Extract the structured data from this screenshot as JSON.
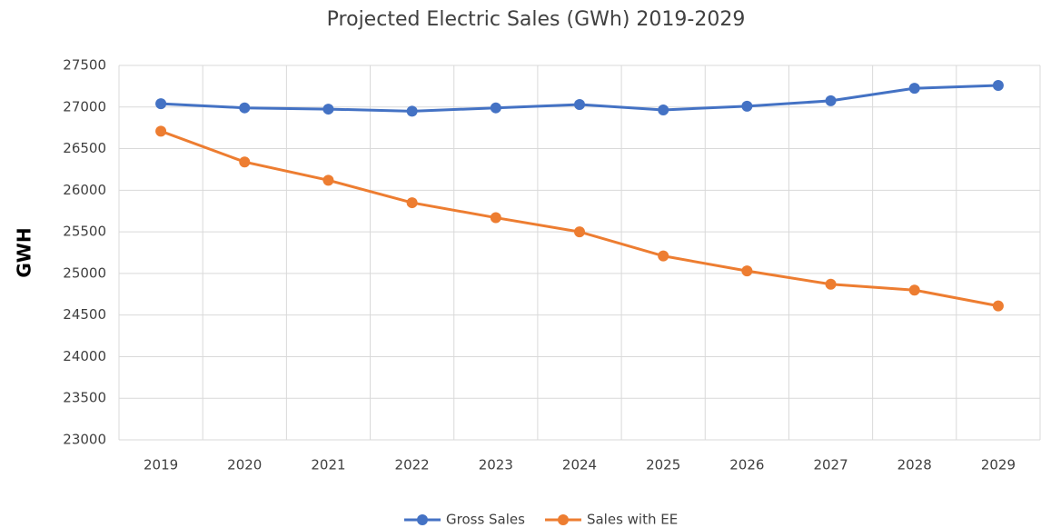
{
  "chart_data": {
    "type": "line",
    "title": "Projected Electric Sales (GWh) 2019-2029",
    "y_label": "GWH",
    "categories": [
      "2019",
      "2020",
      "2021",
      "2022",
      "2023",
      "2024",
      "2025",
      "2026",
      "2027",
      "2028",
      "2029"
    ],
    "series": [
      {
        "name": "Gross Sales",
        "color": "#4472c4",
        "values": [
          27040,
          26990,
          26975,
          26950,
          26990,
          27030,
          26965,
          27010,
          27075,
          27225,
          27260
        ]
      },
      {
        "name": "Sales with EE",
        "color": "#ed7d31",
        "values": [
          26710,
          26340,
          26120,
          25850,
          25670,
          25500,
          25210,
          25030,
          24870,
          24800,
          24610
        ]
      }
    ],
    "ylim": [
      23000,
      27500
    ],
    "yticks": [
      23000,
      23500,
      24000,
      24500,
      25000,
      25500,
      26000,
      26500,
      27000,
      27500
    ],
    "grid": true,
    "legend": "bottom"
  }
}
